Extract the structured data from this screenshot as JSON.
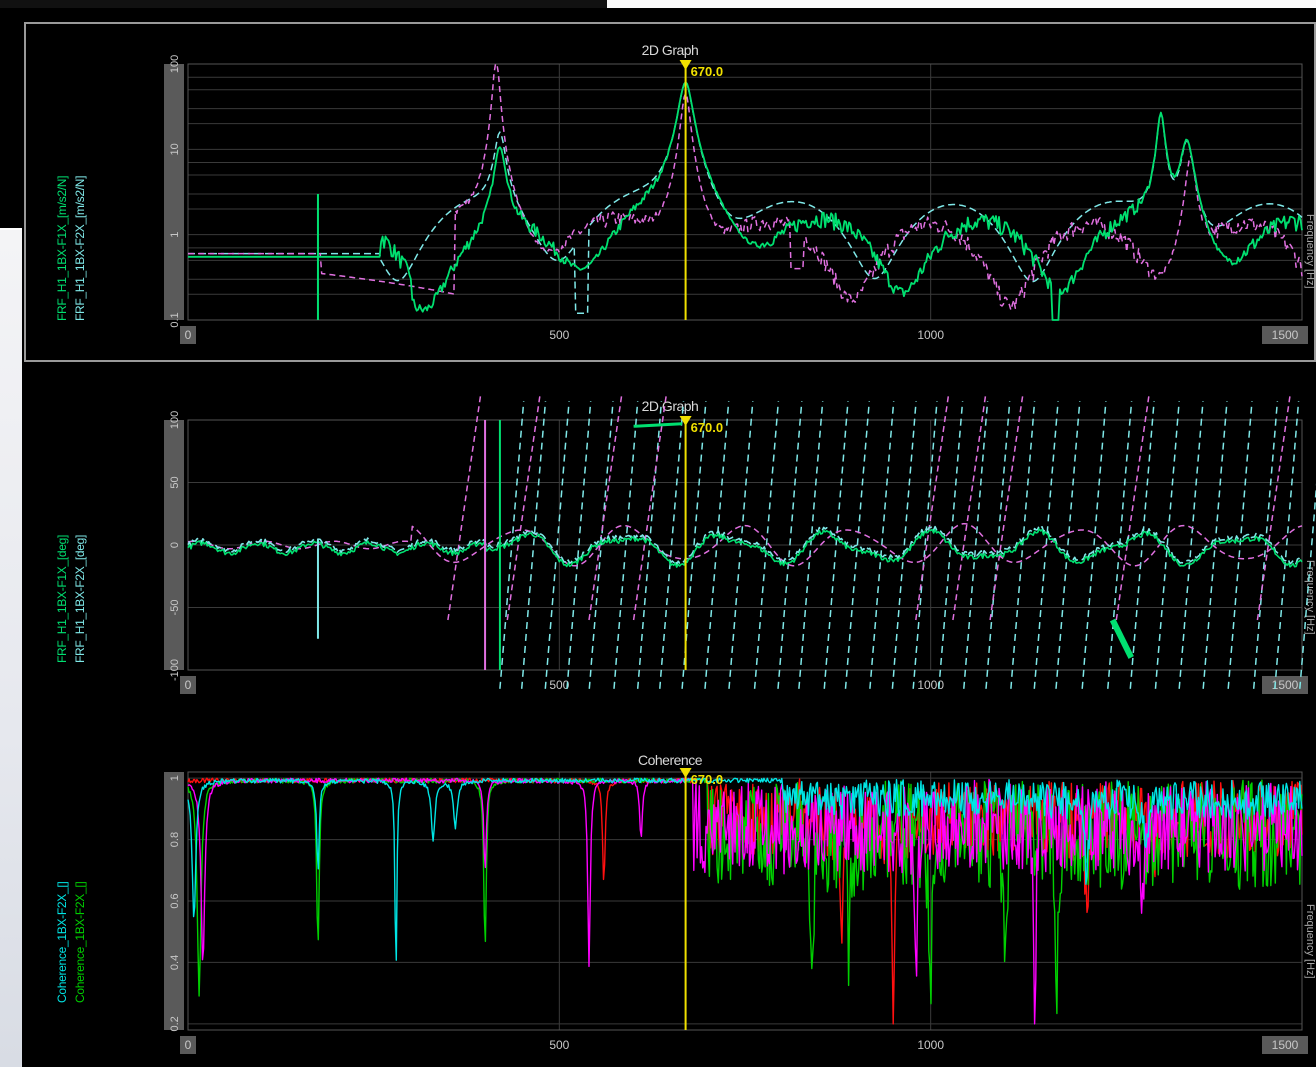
{
  "panels": [
    {
      "title": "2D Graph",
      "ylabel_a": "FRF_H1_1BX-F1X_[m/s2/N]",
      "ylabel_b": "FRF_H1_1BX-F2X_[m/s2/N]",
      "right_label": "Frequency [Hz]",
      "yticks": [
        "100",
        "10",
        "1",
        "0.1"
      ],
      "xticks": [
        "0",
        "500",
        "1000",
        "1500"
      ],
      "cursor_label": "670.0",
      "colors": {
        "a": "#00e070",
        "b": "#7fe8e8",
        "c": "#e070e0"
      }
    },
    {
      "title": "2D Graph",
      "ylabel_a": "FRF_H1_1BX-F1X_[deg]",
      "ylabel_b": "FRF_H1_1BX-F2X_[deg]",
      "right_label": "Frequency [Hz]",
      "yticks": [
        "100",
        "50",
        "0",
        "-50",
        "-100"
      ],
      "xticks": [
        "0",
        "500",
        "1000",
        "1500"
      ],
      "cursor_label": "670.0",
      "colors": {
        "a": "#00e070",
        "b": "#7fe8e8",
        "c": "#e070e0"
      }
    },
    {
      "title": "Coherence",
      "ylabel_a": "Coherence_1BX-F2X_[]",
      "ylabel_b": "Coherence_1BX-F2X_[]",
      "right_label": "Frequency [Hz]",
      "yticks": [
        "1",
        "0.8",
        "0.6",
        "0.4",
        "0.2"
      ],
      "xticks": [
        "0",
        "500",
        "1000",
        "1500"
      ],
      "cursor_label": "670.0",
      "colors": {
        "a": "#00e5e5",
        "b": "#00d000",
        "c": "#ff00ff",
        "d": "#ff1010"
      }
    }
  ],
  "chart_data": [
    {
      "type": "line",
      "title": "2D Graph",
      "xlabel": "Frequency [Hz]",
      "x_range": [
        0,
        1500
      ],
      "y_scale": "log",
      "y_range": [
        0.1,
        100
      ],
      "cursor_x": 670.0,
      "series": [
        {
          "name": "FRF_H1_1BX-F1X_[m/s2/N]",
          "peaks_hz": [
            420,
            670,
            1310
          ]
        },
        {
          "name": "FRF_H1_1BX-F2X_[m/s2/N]",
          "peaks_hz": [
            415,
            670,
            1345
          ]
        }
      ]
    },
    {
      "type": "line",
      "title": "2D Graph",
      "xlabel": "Frequency [Hz]",
      "x_range": [
        0,
        1500
      ],
      "y_range": [
        -100,
        100
      ],
      "cursor_x": 670.0,
      "series": [
        {
          "name": "FRF_H1_1BX-F1X_[deg]"
        },
        {
          "name": "FRF_H1_1BX-F2X_[deg]"
        }
      ]
    },
    {
      "type": "line",
      "title": "Coherence",
      "xlabel": "Frequency [Hz]",
      "x_range": [
        0,
        1500
      ],
      "y_range": [
        0.2,
        1.0
      ],
      "cursor_x": 670.0,
      "series": [
        {
          "name": "Coherence_1BX-F2X_[]"
        },
        {
          "name": "Coherence_1BX-F2X_[]"
        }
      ]
    }
  ]
}
